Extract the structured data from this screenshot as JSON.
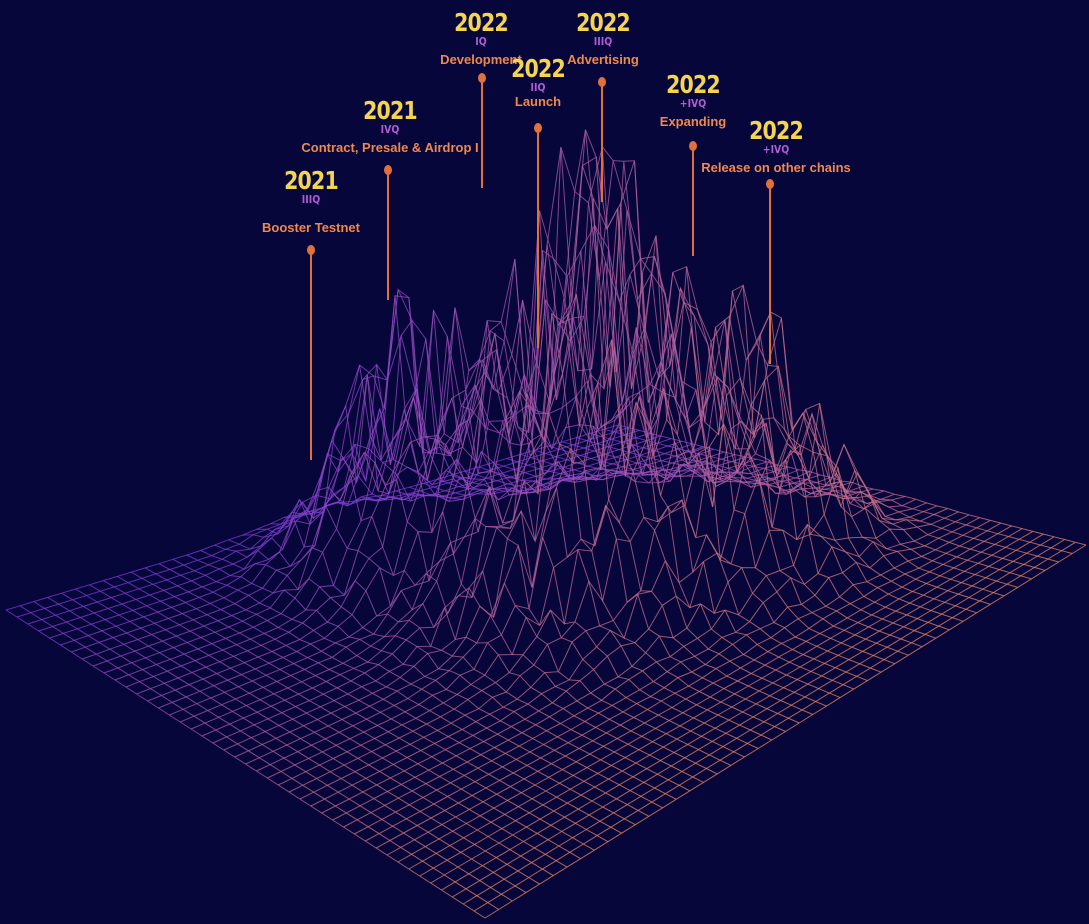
{
  "colors": {
    "background": "#06063a",
    "year": "#f5d54f",
    "quarter": "#b25cd6",
    "label": "#f0884e",
    "pin": "#e2703a",
    "mesh_cool": "#7b3bd8",
    "mesh_warm": "#f08a5d"
  },
  "milestones": [
    {
      "year": "2021",
      "quarter": "IIIQ",
      "label": "Booster Testnet"
    },
    {
      "year": "2021",
      "quarter": "IVQ",
      "label": "Contract, Presale & Airdrop I"
    },
    {
      "year": "2022",
      "quarter": "IQ",
      "label": "Development"
    },
    {
      "year": "2022",
      "quarter": "IIQ",
      "label": "Launch"
    },
    {
      "year": "2022",
      "quarter": "IIIQ",
      "label": "Advertising"
    },
    {
      "year": "2022",
      "quarter": "+IVQ",
      "label": "Expanding"
    },
    {
      "year": "2022",
      "quarter": "+IVQ",
      "label": "Release on other chains"
    }
  ]
}
